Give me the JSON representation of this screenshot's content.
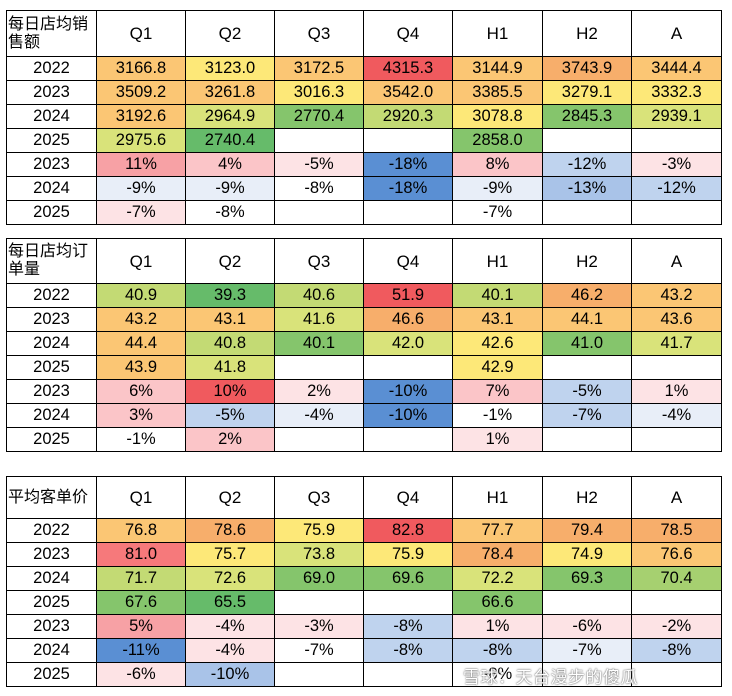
{
  "columns": [
    "Q1",
    "Q2",
    "Q3",
    "Q4",
    "H1",
    "H2",
    "A"
  ],
  "palette": {
    "deep_red": "#f05a5e",
    "red": "#f6797b",
    "salmon": "#f8a086",
    "orange": "#f7ae6b",
    "light_orange": "#fbc674",
    "yellow": "#fde878",
    "yellow_green": "#d9e37a",
    "light_green": "#c3da74",
    "green_light": "#a6d070",
    "green": "#85c56c",
    "dark_green": "#66bb6a",
    "pink_dark": "#f7a1a5",
    "pink": "#fbc5c8",
    "pink_light": "#fde3e5",
    "white": "#ffffff",
    "pale_blue": "#e8eef8",
    "light_blue": "#bfd3ee",
    "medium_blue": "#a9c3e8",
    "blue": "#5a8fd3"
  },
  "tables": [
    {
      "header": "每日店均销售额",
      "rows": [
        {
          "label": "2022",
          "cells": [
            [
              "3166.8",
              "light_orange"
            ],
            [
              "3123.0",
              "yellow"
            ],
            [
              "3172.5",
              "light_orange"
            ],
            [
              "4315.3",
              "deep_red"
            ],
            [
              "3144.9",
              "light_orange"
            ],
            [
              "3743.9",
              "orange"
            ],
            [
              "3444.4",
              "light_orange"
            ]
          ]
        },
        {
          "label": "2023",
          "cells": [
            [
              "3509.2",
              "light_orange"
            ],
            [
              "3261.8",
              "light_orange"
            ],
            [
              "3016.3",
              "yellow"
            ],
            [
              "3542.0",
              "light_orange"
            ],
            [
              "3385.5",
              "light_orange"
            ],
            [
              "3279.1",
              "yellow"
            ],
            [
              "3332.3",
              "yellow"
            ]
          ]
        },
        {
          "label": "2024",
          "cells": [
            [
              "3192.6",
              "light_orange"
            ],
            [
              "2964.9",
              "yellow_green"
            ],
            [
              "2770.4",
              "green"
            ],
            [
              "2920.3",
              "light_green"
            ],
            [
              "3078.8",
              "yellow"
            ],
            [
              "2845.3",
              "green"
            ],
            [
              "2939.1",
              "yellow_green"
            ]
          ]
        },
        {
          "label": "2025",
          "cells": [
            [
              "2975.6",
              "yellow_green"
            ],
            [
              "2740.4",
              "dark_green"
            ],
            [
              "",
              ""
            ],
            [
              "",
              ""
            ],
            [
              "2858.0",
              "green"
            ],
            [
              "",
              ""
            ],
            [
              "",
              ""
            ]
          ]
        },
        {
          "label": "2023",
          "cells": [
            [
              "11%",
              "pink_dark"
            ],
            [
              "4%",
              "pink"
            ],
            [
              "-5%",
              "pink_light"
            ],
            [
              "-18%",
              "blue"
            ],
            [
              "8%",
              "pink"
            ],
            [
              "-12%",
              "light_blue"
            ],
            [
              "-3%",
              "pink_light"
            ]
          ]
        },
        {
          "label": "2024",
          "cells": [
            [
              "-9%",
              "pale_blue"
            ],
            [
              "-9%",
              "pale_blue"
            ],
            [
              "-8%",
              "white"
            ],
            [
              "-18%",
              "blue"
            ],
            [
              "-9%",
              "pale_blue"
            ],
            [
              "-13%",
              "medium_blue"
            ],
            [
              "-12%",
              "light_blue"
            ]
          ]
        },
        {
          "label": "2025",
          "cells": [
            [
              "-7%",
              "pink_light"
            ],
            [
              "-8%",
              "white"
            ],
            [
              "",
              ""
            ],
            [
              "",
              ""
            ],
            [
              "-7%",
              "white"
            ],
            [
              "",
              ""
            ],
            [
              "",
              ""
            ]
          ]
        }
      ]
    },
    {
      "header": "每日店均订单量",
      "rows": [
        {
          "label": "2022",
          "cells": [
            [
              "40.9",
              "light_green"
            ],
            [
              "39.3",
              "dark_green"
            ],
            [
              "40.6",
              "light_green"
            ],
            [
              "51.9",
              "deep_red"
            ],
            [
              "40.1",
              "light_green"
            ],
            [
              "46.2",
              "orange"
            ],
            [
              "43.2",
              "light_orange"
            ]
          ]
        },
        {
          "label": "2023",
          "cells": [
            [
              "43.2",
              "light_orange"
            ],
            [
              "43.1",
              "light_orange"
            ],
            [
              "41.6",
              "yellow_green"
            ],
            [
              "46.6",
              "orange"
            ],
            [
              "43.1",
              "light_orange"
            ],
            [
              "44.1",
              "light_orange"
            ],
            [
              "43.6",
              "light_orange"
            ]
          ]
        },
        {
          "label": "2024",
          "cells": [
            [
              "44.4",
              "light_orange"
            ],
            [
              "40.8",
              "light_green"
            ],
            [
              "40.1",
              "green"
            ],
            [
              "42.0",
              "yellow_green"
            ],
            [
              "42.6",
              "yellow"
            ],
            [
              "41.0",
              "green"
            ],
            [
              "41.7",
              "yellow_green"
            ]
          ]
        },
        {
          "label": "2025",
          "cells": [
            [
              "43.9",
              "light_orange"
            ],
            [
              "41.8",
              "yellow_green"
            ],
            [
              "",
              ""
            ],
            [
              "",
              ""
            ],
            [
              "42.9",
              "yellow"
            ],
            [
              "",
              ""
            ],
            [
              "",
              ""
            ]
          ]
        },
        {
          "label": "2023",
          "cells": [
            [
              "6%",
              "pink"
            ],
            [
              "10%",
              "deep_red"
            ],
            [
              "2%",
              "pink_light"
            ],
            [
              "-10%",
              "blue"
            ],
            [
              "7%",
              "pink"
            ],
            [
              "-5%",
              "light_blue"
            ],
            [
              "1%",
              "pink_light"
            ]
          ]
        },
        {
          "label": "2024",
          "cells": [
            [
              "3%",
              "pink"
            ],
            [
              "-5%",
              "light_blue"
            ],
            [
              "-4%",
              "pale_blue"
            ],
            [
              "-10%",
              "blue"
            ],
            [
              "-1%",
              "white"
            ],
            [
              "-7%",
              "light_blue"
            ],
            [
              "-4%",
              "pale_blue"
            ]
          ]
        },
        {
          "label": "2025",
          "cells": [
            [
              "-1%",
              "white"
            ],
            [
              "2%",
              "pink"
            ],
            [
              "",
              ""
            ],
            [
              "",
              ""
            ],
            [
              "1%",
              "pink_light"
            ],
            [
              "",
              ""
            ],
            [
              "",
              ""
            ]
          ]
        }
      ]
    },
    {
      "header": "平均客单价",
      "rows": [
        {
          "label": "2022",
          "cells": [
            [
              "76.8",
              "light_orange"
            ],
            [
              "78.6",
              "orange"
            ],
            [
              "75.9",
              "yellow"
            ],
            [
              "82.8",
              "deep_red"
            ],
            [
              "77.7",
              "light_orange"
            ],
            [
              "79.4",
              "orange"
            ],
            [
              "78.5",
              "orange"
            ]
          ]
        },
        {
          "label": "2023",
          "cells": [
            [
              "81.0",
              "red"
            ],
            [
              "75.7",
              "yellow"
            ],
            [
              "73.8",
              "yellow_green"
            ],
            [
              "75.9",
              "yellow"
            ],
            [
              "78.4",
              "orange"
            ],
            [
              "74.9",
              "yellow"
            ],
            [
              "76.6",
              "light_orange"
            ]
          ]
        },
        {
          "label": "2024",
          "cells": [
            [
              "71.7",
              "light_green"
            ],
            [
              "72.6",
              "yellow_green"
            ],
            [
              "69.0",
              "green"
            ],
            [
              "69.6",
              "green"
            ],
            [
              "72.2",
              "yellow_green"
            ],
            [
              "69.3",
              "green"
            ],
            [
              "70.4",
              "green_light"
            ]
          ]
        },
        {
          "label": "2025",
          "cells": [
            [
              "67.6",
              "green"
            ],
            [
              "65.5",
              "dark_green"
            ],
            [
              "",
              ""
            ],
            [
              "",
              ""
            ],
            [
              "66.6",
              "green"
            ],
            [
              "",
              ""
            ],
            [
              "",
              ""
            ]
          ]
        },
        {
          "label": "2023",
          "cells": [
            [
              "5%",
              "pink_dark"
            ],
            [
              "-4%",
              "pink_light"
            ],
            [
              "-3%",
              "pink_light"
            ],
            [
              "-8%",
              "light_blue"
            ],
            [
              "1%",
              "pink_light"
            ],
            [
              "-6%",
              "pink_light"
            ],
            [
              "-2%",
              "pink_light"
            ]
          ]
        },
        {
          "label": "2024",
          "cells": [
            [
              "-11%",
              "blue"
            ],
            [
              "-4%",
              "pink_light"
            ],
            [
              "-7%",
              "white"
            ],
            [
              "-8%",
              "light_blue"
            ],
            [
              "-8%",
              "light_blue"
            ],
            [
              "-7%",
              "pale_blue"
            ],
            [
              "-8%",
              "light_blue"
            ]
          ]
        },
        {
          "label": "2025",
          "cells": [
            [
              "-6%",
              "pink_light"
            ],
            [
              "-10%",
              "medium_blue"
            ],
            [
              "",
              ""
            ],
            [
              "",
              ""
            ],
            [
              "-8%",
              "white"
            ],
            [
              "",
              ""
            ],
            [
              "",
              ""
            ]
          ]
        }
      ]
    }
  ],
  "watermark": "雪球：天台漫步的傻瓜"
}
